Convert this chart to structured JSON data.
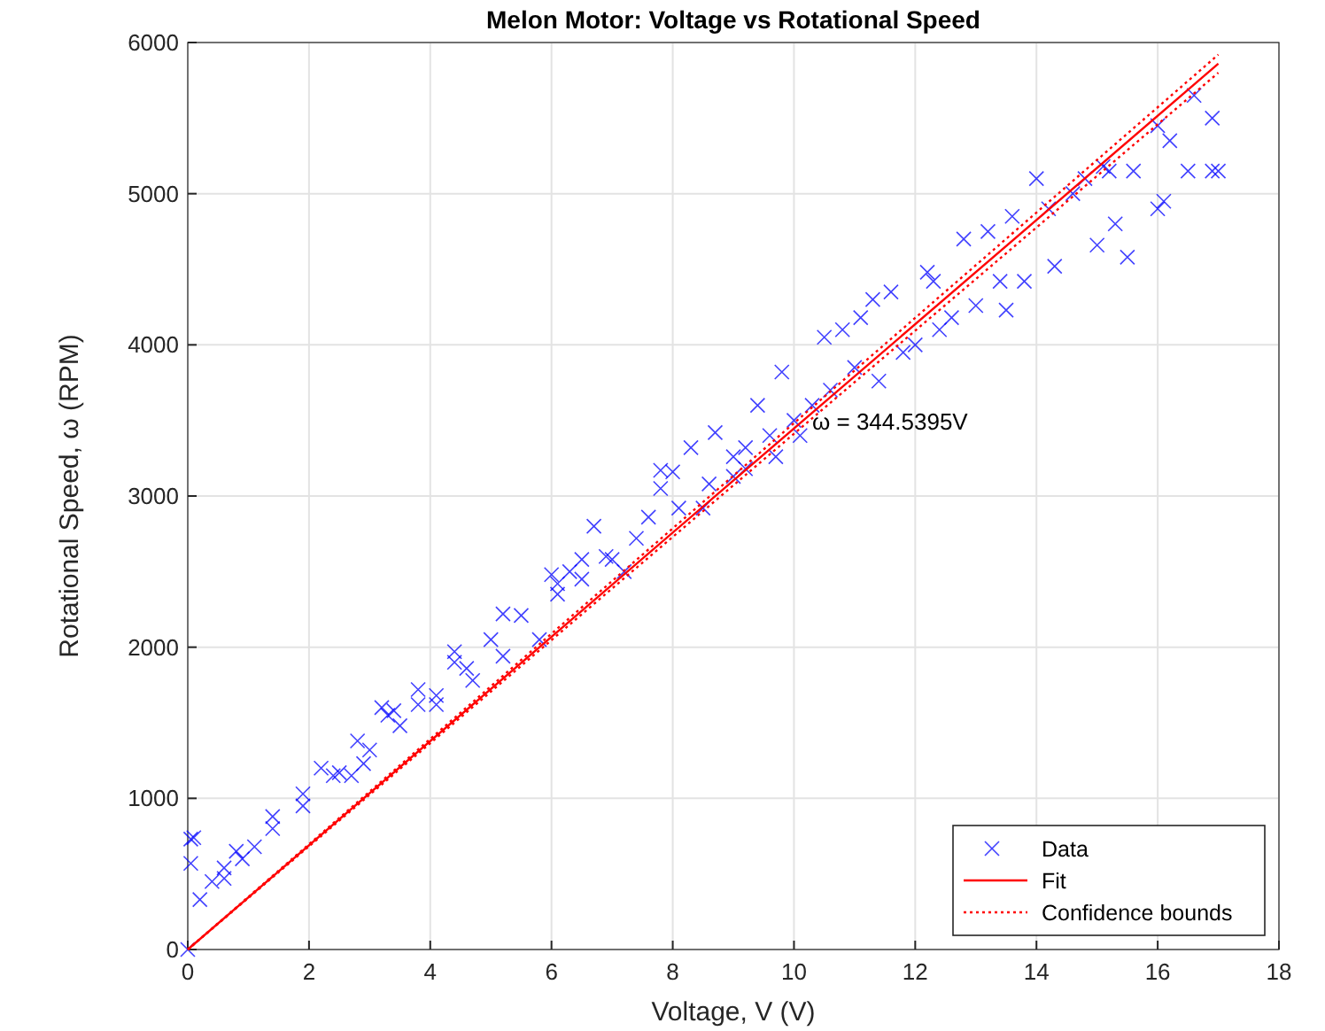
{
  "chart_data": {
    "type": "scatter",
    "title": "Melon Motor: Voltage vs Rotational Speed",
    "xlabel": "Voltage, V (V)",
    "ylabel": "Rotational Speed, ω (RPM)",
    "xlim": [
      0,
      18
    ],
    "xticks": [
      0,
      2,
      4,
      6,
      8,
      10,
      12,
      14,
      16,
      18
    ],
    "ylim": [
      0,
      6000
    ],
    "yticks": [
      0,
      1000,
      2000,
      3000,
      4000,
      5000,
      6000
    ],
    "grid": true,
    "legend": "bottom right",
    "marker": "cross",
    "series": [
      {
        "name": "Data",
        "color": "#0000ff",
        "x": [
          0,
          0.05,
          0.1,
          0.05,
          0.2,
          0.4,
          0.6,
          0.6,
          0.8,
          0.9,
          1.1,
          1.4,
          1.4,
          1.9,
          1.9,
          2.2,
          2.4,
          2.5,
          2.7,
          2.8,
          2.9,
          3.0,
          3.2,
          3.3,
          3.4,
          3.5,
          3.8,
          3.8,
          4.1,
          4.1,
          4.4,
          4.4,
          4.6,
          4.7,
          5.0,
          5.2,
          5.2,
          5.5,
          5.8,
          6.0,
          6.1,
          6.1,
          6.3,
          6.5,
          6.5,
          6.7,
          6.9,
          7.0,
          7.2,
          7.4,
          7.6,
          7.8,
          7.8,
          8.0,
          8.1,
          8.3,
          8.5,
          8.6,
          8.7,
          9.0,
          9.0,
          9.2,
          9.2,
          9.4,
          9.6,
          9.7,
          9.8,
          10.0,
          10.1,
          10.3,
          10.5,
          10.6,
          10.8,
          11.0,
          11.1,
          11.3,
          11.4,
          11.6,
          11.8,
          12.0,
          12.2,
          12.3,
          12.4,
          12.6,
          12.8,
          13.0,
          13.2,
          13.4,
          13.5,
          13.6,
          13.8,
          14.0,
          14.2,
          14.3,
          14.6,
          14.8,
          15.0,
          15.1,
          15.2,
          15.3,
          15.5,
          15.6,
          16.0,
          16.0,
          16.1,
          16.2,
          16.5,
          16.6,
          16.9,
          16.9,
          17.0
        ],
        "values": [
          0,
          730,
          740,
          570,
          330,
          450,
          470,
          540,
          650,
          600,
          680,
          800,
          880,
          950,
          1030,
          1200,
          1150,
          1170,
          1150,
          1380,
          1230,
          1320,
          1600,
          1550,
          1580,
          1480,
          1720,
          1620,
          1680,
          1620,
          1900,
          1970,
          1860,
          1780,
          2050,
          2220,
          1940,
          2210,
          2050,
          2480,
          2350,
          2420,
          2500,
          2580,
          2450,
          2800,
          2600,
          2580,
          2500,
          2720,
          2860,
          3170,
          3050,
          3160,
          2920,
          3320,
          2920,
          3080,
          3420,
          3130,
          3260,
          3320,
          3180,
          3600,
          3400,
          3260,
          3820,
          3500,
          3400,
          3600,
          4050,
          3700,
          4100,
          3850,
          4180,
          4300,
          3760,
          4350,
          3950,
          4000,
          4480,
          4420,
          4100,
          4180,
          4700,
          4260,
          4750,
          4420,
          4230,
          4850,
          4420,
          5100,
          4900,
          4520,
          5000,
          5100,
          4660,
          5180,
          5150,
          4800,
          4580,
          5150,
          4900,
          5450,
          4950,
          5350,
          5150,
          5650,
          5500,
          5150,
          5150
        ]
      },
      {
        "name": "Fit",
        "type": "line",
        "color": "#ff0000",
        "line_style": "solid",
        "marker": "none",
        "x": [
          0,
          17
        ],
        "values": [
          0,
          5860
        ]
      },
      {
        "name": "Confidence bounds",
        "type": "line",
        "color": "#ff0000",
        "line_style": "dotted",
        "marker": "none",
        "x": [
          0,
          17
        ],
        "values": [
          0,
          5920
        ]
      },
      {
        "type": "line",
        "color": "#ff0000",
        "line_style": "dotted",
        "marker": "none",
        "x": [
          0,
          17
        ],
        "values": [
          0,
          5800
        ]
      }
    ],
    "annotations": [
      {
        "text": "ω = 344.5395V",
        "x": 10.3,
        "y": 3500
      }
    ]
  }
}
